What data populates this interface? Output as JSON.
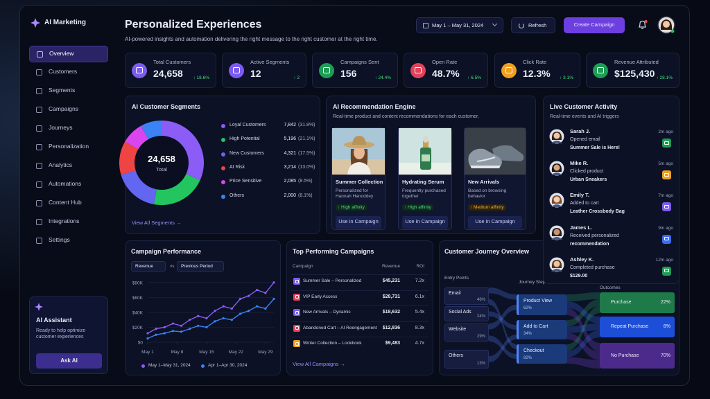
{
  "sidebar": {
    "brand": "AI Marketing",
    "nav": [
      "Overview",
      "Customers",
      "Segments",
      "Campaigns",
      "Journeys",
      "Personalization",
      "Analytics",
      "Automations",
      "Content Hub",
      "Integrations",
      "Settings"
    ],
    "assistant": {
      "title": "AI Assistant",
      "text": "Ready to help optimize customer experiences",
      "button": "Ask AI"
    }
  },
  "header": {
    "title": "Personalized Experiences",
    "subtitle": "AI-powered insights and automation delivering the right message to the right customer at the right time.",
    "date_range": "May 1 – May 31, 2024",
    "refresh": "Refresh",
    "create": "Create Campaign"
  },
  "kpis": [
    {
      "label": "Total Customers",
      "value": "24,658",
      "delta": "↑ 18.6%",
      "color": "#7c5cf0"
    },
    {
      "label": "Active Segments",
      "value": "12",
      "delta": "↑ 2",
      "color": "#7c5cf0"
    },
    {
      "label": "Campaigns Sent",
      "value": "156",
      "delta": "↑ 24.4%",
      "color": "#1f9d55"
    },
    {
      "label": "Open Rate",
      "value": "48.7%",
      "delta": "↑ 6.5%",
      "color": "#e0435a"
    },
    {
      "label": "Click Rate",
      "value": "12.3%",
      "delta": "↑ 3.1%",
      "color": "#f0a020"
    },
    {
      "label": "Revenue Attributed",
      "value": "$125,430",
      "delta": "↑ 28.1%",
      "color": "#1f9d55"
    }
  ],
  "segments": {
    "title": "AI Customer Segments",
    "total": "24,658",
    "total_label": "Total",
    "items": [
      {
        "name": "Loyal Customers",
        "count": "7,842",
        "share": 31.8,
        "share_label": "(31.8%)",
        "color": "#8b5cf6"
      },
      {
        "name": "High Potential",
        "count": "5,196",
        "share": 21.1,
        "share_label": "(21.1%)",
        "color": "#22c55e"
      },
      {
        "name": "New Customers",
        "count": "4,321",
        "share": 17.5,
        "share_label": "(17.5%)",
        "color": "#6366f1"
      },
      {
        "name": "At Risk",
        "count": "3,214",
        "share": 13.0,
        "share_label": "(13.0%)",
        "color": "#ef4444"
      },
      {
        "name": "Price Sensitive",
        "count": "2,085",
        "share": 8.5,
        "share_label": "(8.5%)",
        "color": "#d946ef"
      },
      {
        "name": "Others",
        "count": "2,000",
        "share": 8.1,
        "share_label": "(8.1%)",
        "color": "#3b82f6"
      }
    ],
    "link": "View All Segments →"
  },
  "recommendations": {
    "title": "AI Recommendation Engine",
    "subtitle": "Real-time product and content recommendations for each customer.",
    "button": "Use in Campaign",
    "cards": [
      {
        "name": "Summer Collection",
        "desc": "Personalized for Hannah Hanoddey",
        "affinity": "↑ High affinity"
      },
      {
        "name": "Hydrating Serum",
        "desc": "Frequently purchased together",
        "affinity": "↑ High affinity"
      },
      {
        "name": "New Arrivals",
        "desc": "Based on browsing behavior",
        "affinity": "↑ Medium affinity"
      }
    ]
  },
  "activity": {
    "title": "Live Customer Activity",
    "subtitle": "Real-time events and AI triggers",
    "events": [
      {
        "name": "Sarah J.",
        "time": "2m ago",
        "action": "Opened email",
        "detail": "Summer Sale is Here!"
      },
      {
        "name": "Mike R.",
        "time": "5m ago",
        "action": "Clicked product",
        "detail": "Urban Sneakers"
      },
      {
        "name": "Emily T.",
        "time": "7m ago",
        "action": "Added to cart",
        "detail": "Leather Crossbody Bag"
      },
      {
        "name": "James L.",
        "time": "9m ago",
        "action": "Received personalized",
        "detail": "recommendation"
      },
      {
        "name": "Ashley K.",
        "time": "12m ago",
        "action": "Completed purchase",
        "detail": "$129.00"
      }
    ]
  },
  "performance": {
    "title": "Campaign Performance",
    "metric": "Revenue",
    "vs": "vs",
    "compare": "Previous Period",
    "chart": {
      "type": "line",
      "x": [
        1,
        3,
        5,
        7,
        9,
        11,
        13,
        15,
        17,
        19,
        21,
        23,
        25,
        27,
        29,
        31
      ],
      "xlim": [
        1,
        31
      ],
      "xticks": [
        {
          "value": 1,
          "label": "May 1"
        },
        {
          "value": 8,
          "label": "May 8"
        },
        {
          "value": 15,
          "label": "May 15"
        },
        {
          "value": 22,
          "label": "May 22"
        },
        {
          "value": 29,
          "label": "May 29"
        }
      ],
      "ylim": [
        0,
        90000
      ],
      "yticks": [
        {
          "value": 0,
          "label": "$0"
        },
        {
          "value": 20000,
          "label": "$20K"
        },
        {
          "value": 40000,
          "label": "$40K"
        },
        {
          "value": 60000,
          "label": "$60K"
        },
        {
          "value": 80000,
          "label": "$80K"
        }
      ],
      "series": [
        {
          "name": "May 1–May 31, 2024",
          "color": "#8b5cf6",
          "values": [
            12000,
            18000,
            20000,
            25000,
            22000,
            30000,
            35000,
            32000,
            42000,
            48000,
            45000,
            58000,
            62000,
            70000,
            66000,
            80000
          ]
        },
        {
          "name": "Apr 1–Apr 30, 2024",
          "color": "#3b82f6",
          "values": [
            5000,
            10000,
            12000,
            15000,
            14000,
            18000,
            22000,
            20000,
            28000,
            32000,
            30000,
            38000,
            42000,
            48000,
            45000,
            58000
          ]
        }
      ]
    }
  },
  "campaigns": {
    "title": "Top Performing Campaigns",
    "columns": [
      "Campaign",
      "Revenue",
      "ROI"
    ],
    "rows": [
      {
        "name": "Summer Sale – Personalized",
        "revenue": "$45,231",
        "roi": "7.2x",
        "color": "#7c5cf0"
      },
      {
        "name": "VIP Early Access",
        "revenue": "$28,731",
        "roi": "6.1x",
        "color": "#e0435a"
      },
      {
        "name": "New Arrivals – Dynamic",
        "revenue": "$18,632",
        "roi": "5.4x",
        "color": "#7c5cf0"
      },
      {
        "name": "Abandoned Cart – AI Reengagement",
        "revenue": "$12,836",
        "roi": "8.3x",
        "color": "#e0435a"
      },
      {
        "name": "Winter Collection – Lookbook",
        "revenue": "$9,483",
        "roi": "4.7x",
        "color": "#f0a020"
      }
    ],
    "link": "View All Campaigns →"
  },
  "journey": {
    "title": "Customer Journey Overview",
    "entry_title": "Entry Points",
    "steps_title": "Journey Steps",
    "outcomes_title": "Outcomes",
    "entries": [
      {
        "name": "Email",
        "share": "46%"
      },
      {
        "name": "Social Ads",
        "share": "24%"
      },
      {
        "name": "Website",
        "share": "29%"
      },
      {
        "name": "Others",
        "share": "13%"
      }
    ],
    "steps": [
      {
        "name": "Product View",
        "share": "62%"
      },
      {
        "name": "Add to Cart",
        "share": "34%"
      },
      {
        "name": "Checkout",
        "share": "82%"
      }
    ],
    "outcomes": [
      {
        "name": "Purchase",
        "share": "22%",
        "color": "#1f7a4a"
      },
      {
        "name": "Repeat Purchase",
        "share": "8%",
        "color": "#1d4ed8"
      },
      {
        "name": "No Purchase",
        "share": "70%",
        "color": "#4c2a8c"
      }
    ]
  }
}
